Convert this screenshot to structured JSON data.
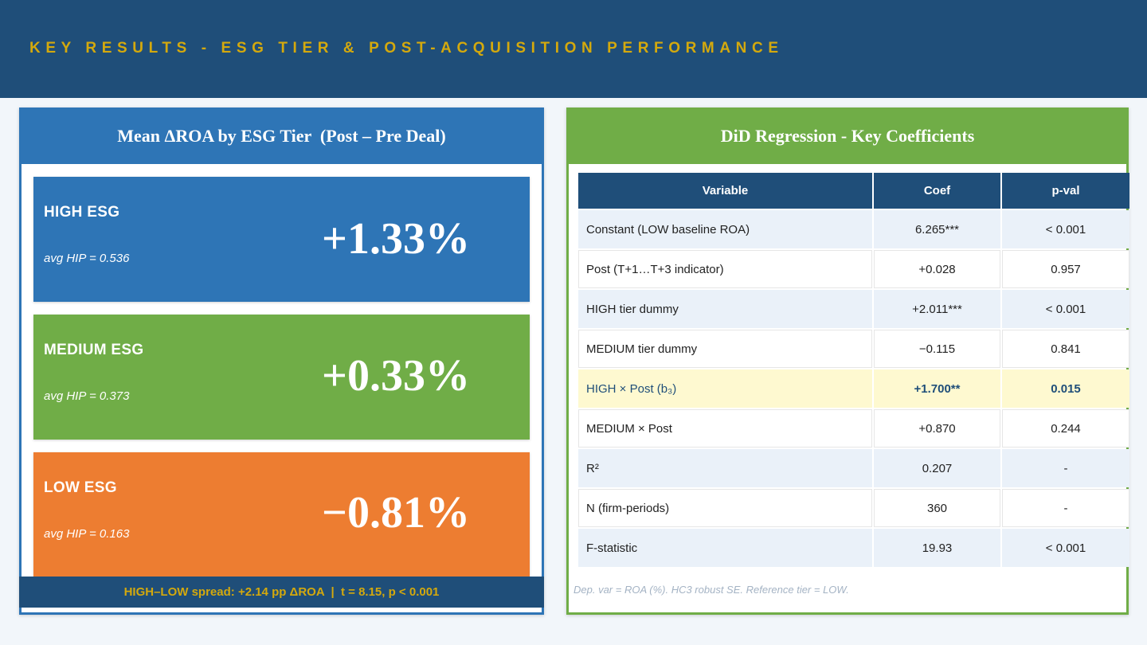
{
  "header": {
    "title": "KEY RESULTS - ESG TIER & POST-ACQUISITION PERFORMANCE"
  },
  "left_panel": {
    "title": "Mean ΔROA by ESG Tier  (Post – Pre Deal)",
    "tiers": [
      {
        "name": "HIGH ESG",
        "hip": "avg HIP = 0.536",
        "value": "+1.33%",
        "color": "#2e75b6"
      },
      {
        "name": "MEDIUM ESG",
        "hip": "avg HIP = 0.373",
        "value": "+0.33%",
        "color": "#70ad47"
      },
      {
        "name": "LOW ESG",
        "hip": "avg HIP = 0.163",
        "value": "−0.81%",
        "color": "#ed7d31"
      }
    ],
    "footer": "HIGH–LOW spread: +2.14 pp ΔROA  |  t = 8.15, p < 0.001"
  },
  "right_panel": {
    "title": "DiD Regression - Key Coefficients",
    "columns": [
      "Variable",
      "Coef",
      "p-val"
    ],
    "rows": [
      {
        "variable": "Constant (LOW baseline ROA)",
        "coef": "6.265***",
        "pval": "< 0.001"
      },
      {
        "variable": "Post (T+1…T+3 indicator)",
        "coef": "+0.028",
        "pval": "0.957"
      },
      {
        "variable": "HIGH tier dummy",
        "coef": "+2.011***",
        "pval": "< 0.001"
      },
      {
        "variable": "MEDIUM tier dummy",
        "coef": "−0.115",
        "pval": "0.841"
      },
      {
        "variable": "HIGH × Post  (b₃)",
        "coef": "+1.700**",
        "pval": "0.015"
      },
      {
        "variable": "MEDIUM × Post",
        "coef": "+0.870",
        "pval": "0.244"
      },
      {
        "variable": "R²",
        "coef": "0.207",
        "pval": "-"
      },
      {
        "variable": "N (firm-periods)",
        "coef": "360",
        "pval": "-"
      },
      {
        "variable": "F-statistic",
        "coef": "19.93",
        "pval": "< 0.001"
      }
    ],
    "note": "Dep. var = ROA (%). HC3 robust SE. Reference tier = LOW."
  },
  "colors": {
    "navy": "#1f4e79",
    "gold": "#d4a90d",
    "blue": "#2e75b6",
    "green": "#70ad47",
    "orange": "#ed7d31",
    "highlight": "#fef9d0"
  }
}
